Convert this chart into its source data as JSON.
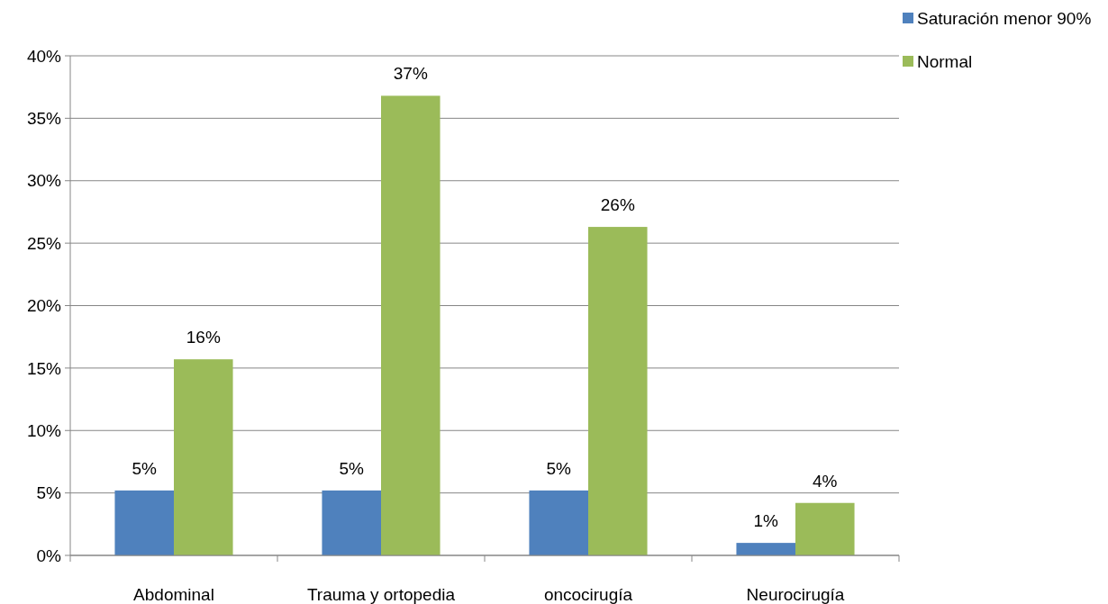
{
  "chart_data": {
    "type": "bar",
    "categories": [
      "Abdominal",
      "Trauma y ortopedia",
      "oncocirugía",
      "Neurocirugía"
    ],
    "series": [
      {
        "name": "Saturación menor 90%",
        "color": "#4f81bd",
        "values": [
          5.2,
          5.2,
          5.2,
          1.0
        ],
        "value_labels": [
          "5%",
          "5%",
          "5%",
          "1%"
        ]
      },
      {
        "name": "Normal",
        "color": "#9bbb59",
        "values": [
          15.7,
          36.8,
          26.3,
          4.2
        ],
        "value_labels": [
          "16%",
          "37%",
          "26%",
          "4%"
        ]
      }
    ],
    "ylim": [
      0,
      40
    ],
    "yticks": [
      {
        "value": 0,
        "label": "0%"
      },
      {
        "value": 5,
        "label": "5%"
      },
      {
        "value": 10,
        "label": "10%"
      },
      {
        "value": 15,
        "label": "15%"
      },
      {
        "value": 20,
        "label": "20%"
      },
      {
        "value": 25,
        "label": "25%"
      },
      {
        "value": 30,
        "label": "30%"
      },
      {
        "value": 35,
        "label": "35%"
      },
      {
        "value": 40,
        "label": "40%"
      }
    ],
    "grid": "y",
    "legend": "top right"
  }
}
